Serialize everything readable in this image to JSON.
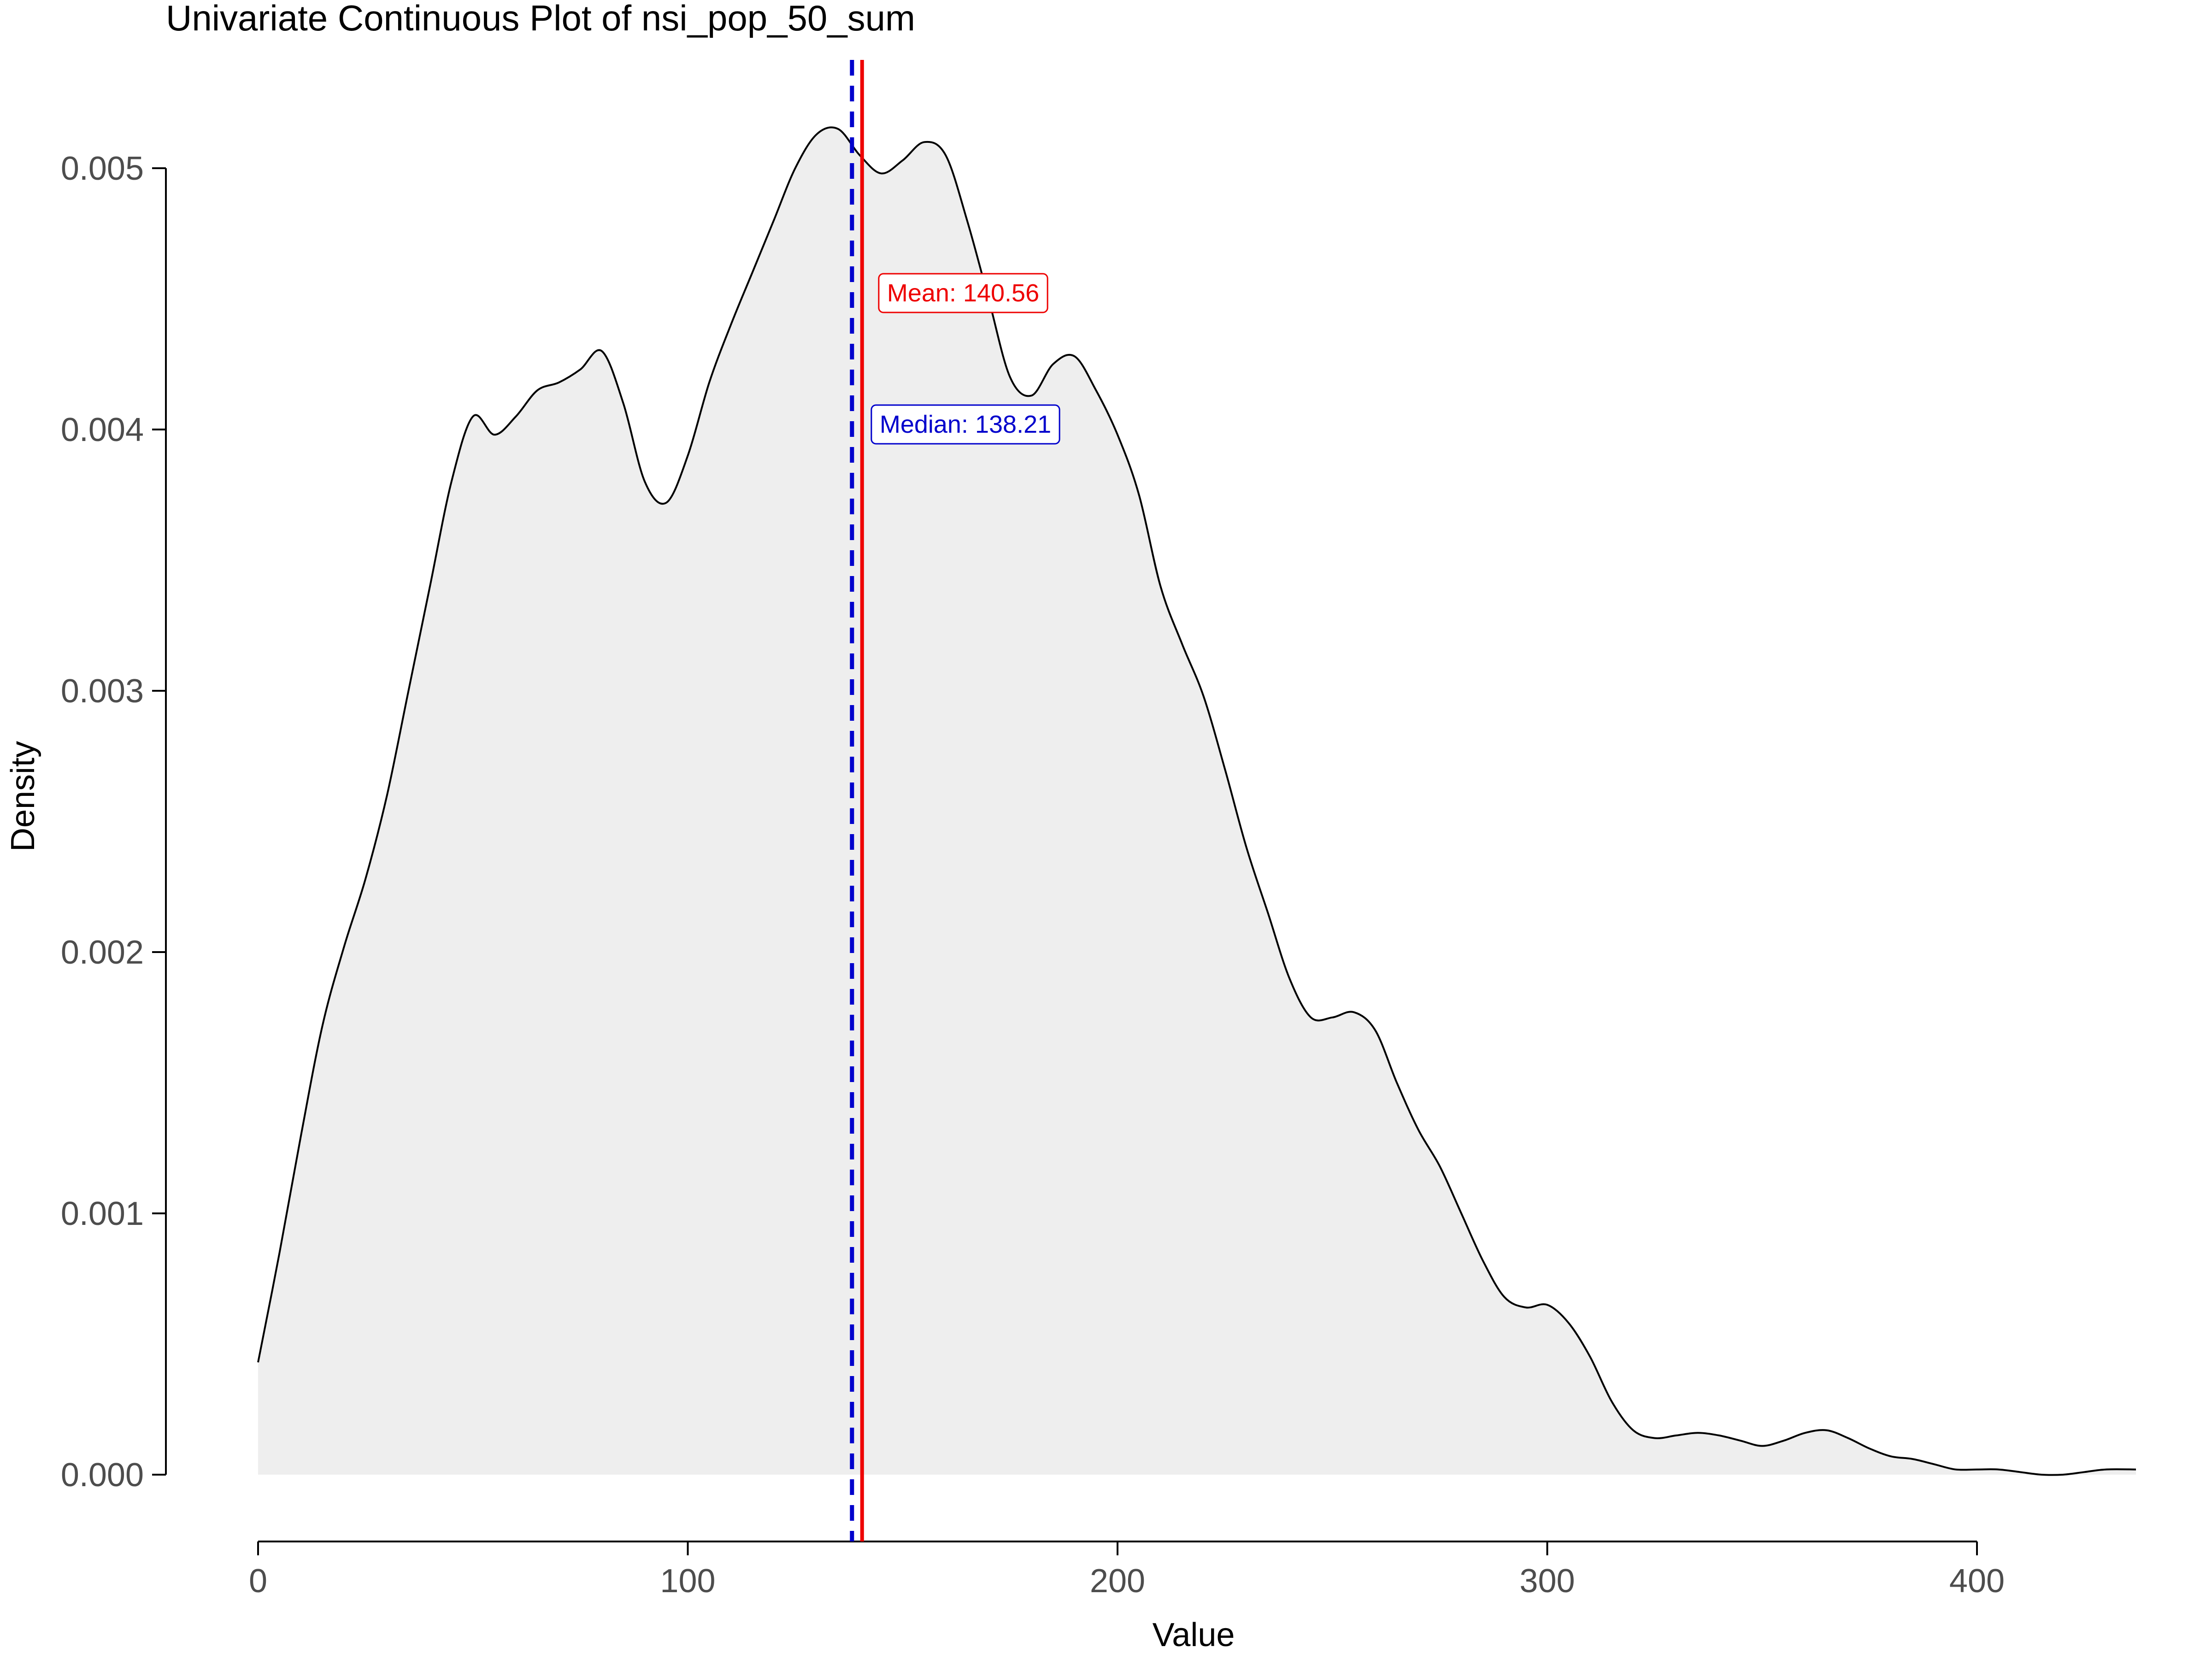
{
  "chart_data": {
    "type": "area",
    "title": "Univariate Continuous Plot of nsi_pop_50_sum",
    "xlabel": "Value",
    "ylabel": "Density",
    "xlim": [
      0,
      437
    ],
    "ylim": [
      0,
      0.0052
    ],
    "x_ticks": [
      0,
      100,
      200,
      300,
      400
    ],
    "x_tick_labels": [
      "0",
      "100",
      "200",
      "300",
      "400"
    ],
    "y_ticks": [
      0,
      0.001,
      0.002,
      0.003,
      0.004,
      0.005
    ],
    "y_tick_labels": [
      "0.000",
      "0.001",
      "0.002",
      "0.003",
      "0.004",
      "0.005"
    ],
    "grid": false,
    "legend": "none",
    "series": [
      {
        "x": [
          0,
          5,
          10,
          15,
          20,
          25,
          30,
          35,
          40,
          45,
          50,
          55,
          60,
          65,
          70,
          75,
          80,
          85,
          90,
          95,
          100,
          105,
          110,
          115,
          120,
          125,
          130,
          135,
          140,
          145,
          150,
          155,
          160,
          165,
          170,
          175,
          180,
          185,
          190,
          195,
          200,
          205,
          210,
          215,
          220,
          225,
          230,
          235,
          240,
          245,
          250,
          255,
          260,
          265,
          270,
          275,
          280,
          285,
          290,
          295,
          300,
          305,
          310,
          315,
          320,
          325,
          330,
          335,
          340,
          345,
          350,
          355,
          360,
          365,
          370,
          375,
          380,
          385,
          390,
          395,
          400,
          405,
          410,
          415,
          420,
          425,
          430,
          437
        ],
        "y": [
          0.00043,
          0.00085,
          0.0013,
          0.00172,
          0.00202,
          0.00228,
          0.0026,
          0.003,
          0.0034,
          0.0038,
          0.00405,
          0.00398,
          0.00405,
          0.00415,
          0.00418,
          0.00423,
          0.0043,
          0.0041,
          0.0038,
          0.00372,
          0.0039,
          0.00418,
          0.0044,
          0.0046,
          0.0048,
          0.005,
          0.00513,
          0.00515,
          0.00505,
          0.00498,
          0.00503,
          0.0051,
          0.00505,
          0.0048,
          0.0045,
          0.0042,
          0.00413,
          0.00425,
          0.00428,
          0.00415,
          0.00398,
          0.00375,
          0.0034,
          0.00318,
          0.00298,
          0.0027,
          0.0024,
          0.00215,
          0.0019,
          0.00175,
          0.00175,
          0.00177,
          0.0017,
          0.0015,
          0.00132,
          0.00118,
          0.001,
          0.00082,
          0.00068,
          0.00064,
          0.00065,
          0.00058,
          0.00045,
          0.00028,
          0.00017,
          0.00014,
          0.00015,
          0.00016,
          0.00015,
          0.00013,
          0.00011,
          0.00013,
          0.00016,
          0.00017,
          0.00014,
          0.0001,
          7e-05,
          6e-05,
          4e-05,
          2e-05,
          2e-05,
          2e-05,
          1e-05,
          0,
          0,
          1e-05,
          2e-05,
          2e-05
        ]
      }
    ],
    "reference_lines": [
      {
        "label": "Mean: 140.56",
        "x": 140.56,
        "color": "#ee0000",
        "style": "solid"
      },
      {
        "label": "Median: 138.21",
        "x": 138.21,
        "color": "#0000cc",
        "style": "dashed"
      }
    ],
    "colors": {
      "fill": "#eeeeee",
      "curve": "#000000",
      "mean": "#ee0000",
      "median": "#0000cc"
    }
  }
}
